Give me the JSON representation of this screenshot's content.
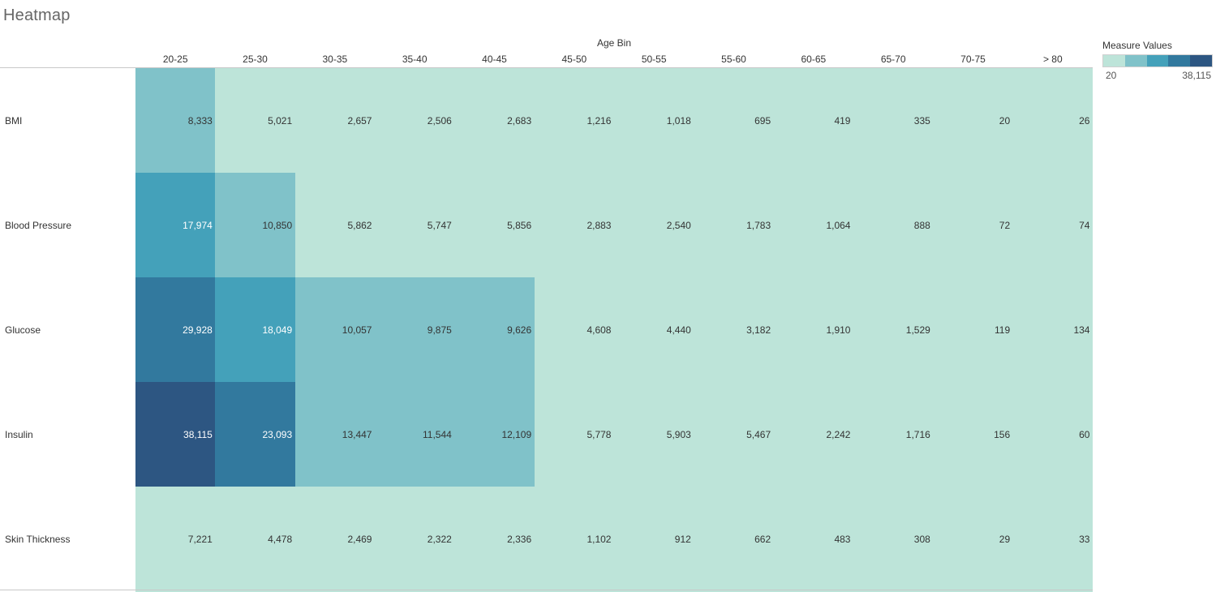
{
  "sheet": {
    "title": "Heatmap"
  },
  "legend": {
    "title": "Measure Values",
    "min_label": "20",
    "max_label": "38,115",
    "colors": [
      "#bde4d9",
      "#80c2c9",
      "#44a1ba",
      "#32799e",
      "#2d5682"
    ]
  },
  "chart_data": {
    "type": "heatmap",
    "title": "Heatmap",
    "xlabel": "Age Bin",
    "ylabel": "",
    "x": [
      "20-25",
      "25-30",
      "30-35",
      "35-40",
      "40-45",
      "45-50",
      "50-55",
      "55-60",
      "60-65",
      "65-70",
      "70-75",
      "> 80"
    ],
    "y": [
      "BMI",
      "Blood Pressure",
      "Glucose",
      "Insulin",
      "Skin Thickness"
    ],
    "values": [
      [
        8333,
        5021,
        2657,
        2506,
        2683,
        1216,
        1018,
        695,
        419,
        335,
        20,
        26
      ],
      [
        17974,
        10850,
        5862,
        5747,
        5856,
        2883,
        2540,
        1783,
        1064,
        888,
        72,
        74
      ],
      [
        29928,
        18049,
        10057,
        9875,
        9626,
        4608,
        4440,
        3182,
        1910,
        1529,
        119,
        134
      ],
      [
        38115,
        23093,
        13447,
        11544,
        12109,
        5778,
        5903,
        5467,
        2242,
        1716,
        156,
        60
      ],
      [
        7221,
        4478,
        2469,
        2322,
        2336,
        1102,
        912,
        662,
        483,
        308,
        29,
        33
      ]
    ],
    "value_labels": [
      [
        "8,333",
        "5,021",
        "2,657",
        "2,506",
        "2,683",
        "1,216",
        "1,018",
        "695",
        "419",
        "335",
        "20",
        "26"
      ],
      [
        "17,974",
        "10,850",
        "5,862",
        "5,747",
        "5,856",
        "2,883",
        "2,540",
        "1,783",
        "1,064",
        "888",
        "72",
        "74"
      ],
      [
        "29,928",
        "18,049",
        "10,057",
        "9,875",
        "9,626",
        "4,608",
        "4,440",
        "3,182",
        "1,910",
        "1,529",
        "119",
        "134"
      ],
      [
        "38,115",
        "23,093",
        "13,447",
        "11,544",
        "12,109",
        "5,778",
        "5,903",
        "5,467",
        "2,242",
        "1,716",
        "156",
        "60"
      ],
      [
        "7,221",
        "4,478",
        "2,469",
        "2,322",
        "2,336",
        "1,102",
        "912",
        "662",
        "483",
        "308",
        "29",
        "33"
      ]
    ],
    "color_min": 20,
    "color_max": 38115,
    "legend_placement": "top-right",
    "grid": false
  }
}
